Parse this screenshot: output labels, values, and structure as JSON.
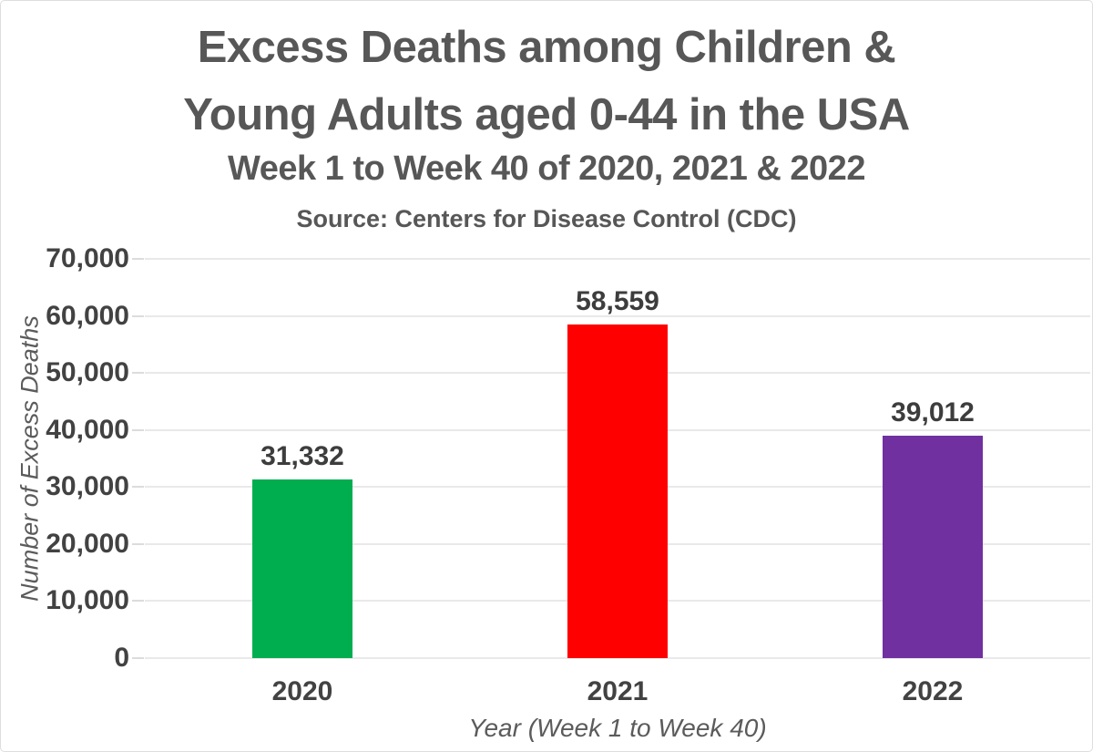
{
  "chart_data": {
    "type": "bar",
    "title": "Excess Deaths among Children & Young Adults aged 0-44 in the USA",
    "title_lines": [
      "Excess Deaths among Children &",
      "Young Adults aged 0-44 in the USA"
    ],
    "subtitle": "Week 1 to Week 40 of 2020, 2021 & 2022",
    "source": "Source: Centers for Disease Control (CDC)",
    "xlabel": "Year (Week 1 to Week 40)",
    "ylabel": "Number of Excess Deaths",
    "categories": [
      "2020",
      "2021",
      "2022"
    ],
    "values": [
      31332,
      58559,
      39012
    ],
    "value_labels": [
      "31,332",
      "58,559",
      "39,012"
    ],
    "bar_colors": [
      "#00ae50",
      "#fe0000",
      "#7030a0"
    ],
    "ylim": [
      0,
      70000
    ],
    "ytick_interval": 10000,
    "ytick_labels": [
      "0",
      "10,000",
      "20,000",
      "30,000",
      "40,000",
      "50,000",
      "60,000",
      "70,000"
    ],
    "grid": true,
    "legend": false,
    "colors": {
      "title_text": "#575757",
      "tick_text": "#424242",
      "data_label_text": "#3d3d3d",
      "axis_title_text": "#5b5b5b",
      "gridline": "#e9e9e9",
      "background": "#ffffff"
    }
  }
}
